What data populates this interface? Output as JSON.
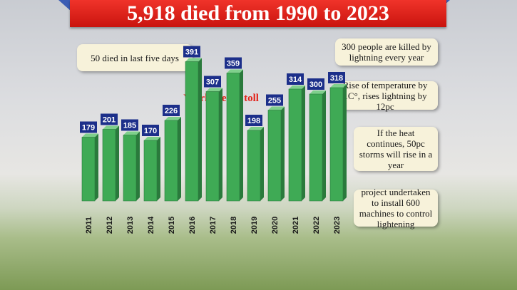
{
  "header": {
    "title": "5,918 died from 1990 to 2023"
  },
  "notes": {
    "left": "50 died in last five days",
    "right_1": "300 people are killed by lightning every year",
    "right_2": "Rise of temperature by 1C°, rises lightning by 12pc",
    "right_3": "If the heat continues, 50pc storms will rise in a year",
    "right_4": "project undertaken to install 600 machines to control lightening"
  },
  "colors": {
    "bar": "#3faa55",
    "label_box": "#1c2f8a",
    "title": "#e2231a",
    "header": "#d8211a"
  },
  "chart_data": {
    "type": "bar",
    "title": "Yearly death toll",
    "categories": [
      "2011",
      "2012",
      "2013",
      "2014",
      "2015",
      "2016",
      "2017",
      "2018",
      "2019",
      "2020",
      "2021",
      "2022",
      "2023"
    ],
    "values": [
      179,
      201,
      185,
      170,
      226,
      391,
      307,
      359,
      198,
      255,
      314,
      300,
      318
    ],
    "xlabel": "",
    "ylabel": "",
    "ylim": [
      0,
      400
    ],
    "grid": false
  }
}
